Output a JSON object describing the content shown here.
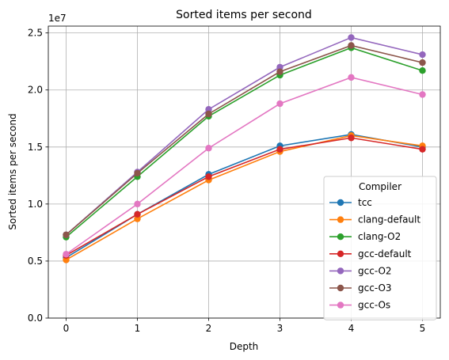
{
  "chart_data": {
    "type": "line",
    "title": "Sorted items per second",
    "xlabel": "Depth",
    "ylabel": "Sorted items per second",
    "y_offset_label": "1e7",
    "x": [
      0,
      1,
      2,
      3,
      4,
      5
    ],
    "xlim": [
      -0.25,
      5.25
    ],
    "ylim": [
      0,
      25600000
    ],
    "xticks": [
      "0",
      "1",
      "2",
      "3",
      "4",
      "5"
    ],
    "yticks": [
      0,
      5000000,
      10000000,
      15000000,
      20000000,
      25000000
    ],
    "ytick_labels": [
      "0.0",
      "0.5",
      "1.0",
      "1.5",
      "2.0",
      "2.5"
    ],
    "grid": true,
    "legend": {
      "title": "Compiler",
      "placement": "lower-right"
    },
    "series": [
      {
        "name": "tcc",
        "color": "#1f77b4",
        "values": [
          5300000,
          9100000,
          12600000,
          15100000,
          16100000,
          15000000
        ]
      },
      {
        "name": "clang-default",
        "color": "#ff7f0e",
        "values": [
          5100000,
          8700000,
          12100000,
          14600000,
          16000000,
          15100000
        ]
      },
      {
        "name": "clang-O2",
        "color": "#2ca02c",
        "values": [
          7100000,
          12400000,
          17700000,
          21300000,
          23700000,
          21700000
        ]
      },
      {
        "name": "gcc-default",
        "color": "#d62728",
        "values": [
          5500000,
          9100000,
          12400000,
          14800000,
          15800000,
          14800000
        ]
      },
      {
        "name": "gcc-O2",
        "color": "#9467bd",
        "values": [
          7300000,
          12800000,
          18300000,
          22000000,
          24600000,
          23100000
        ]
      },
      {
        "name": "gcc-O3",
        "color": "#8c564b",
        "values": [
          7300000,
          12700000,
          17900000,
          21600000,
          23900000,
          22400000
        ]
      },
      {
        "name": "gcc-Os",
        "color": "#e377c2",
        "values": [
          5600000,
          10000000,
          14900000,
          18800000,
          21100000,
          19600000
        ]
      }
    ]
  }
}
